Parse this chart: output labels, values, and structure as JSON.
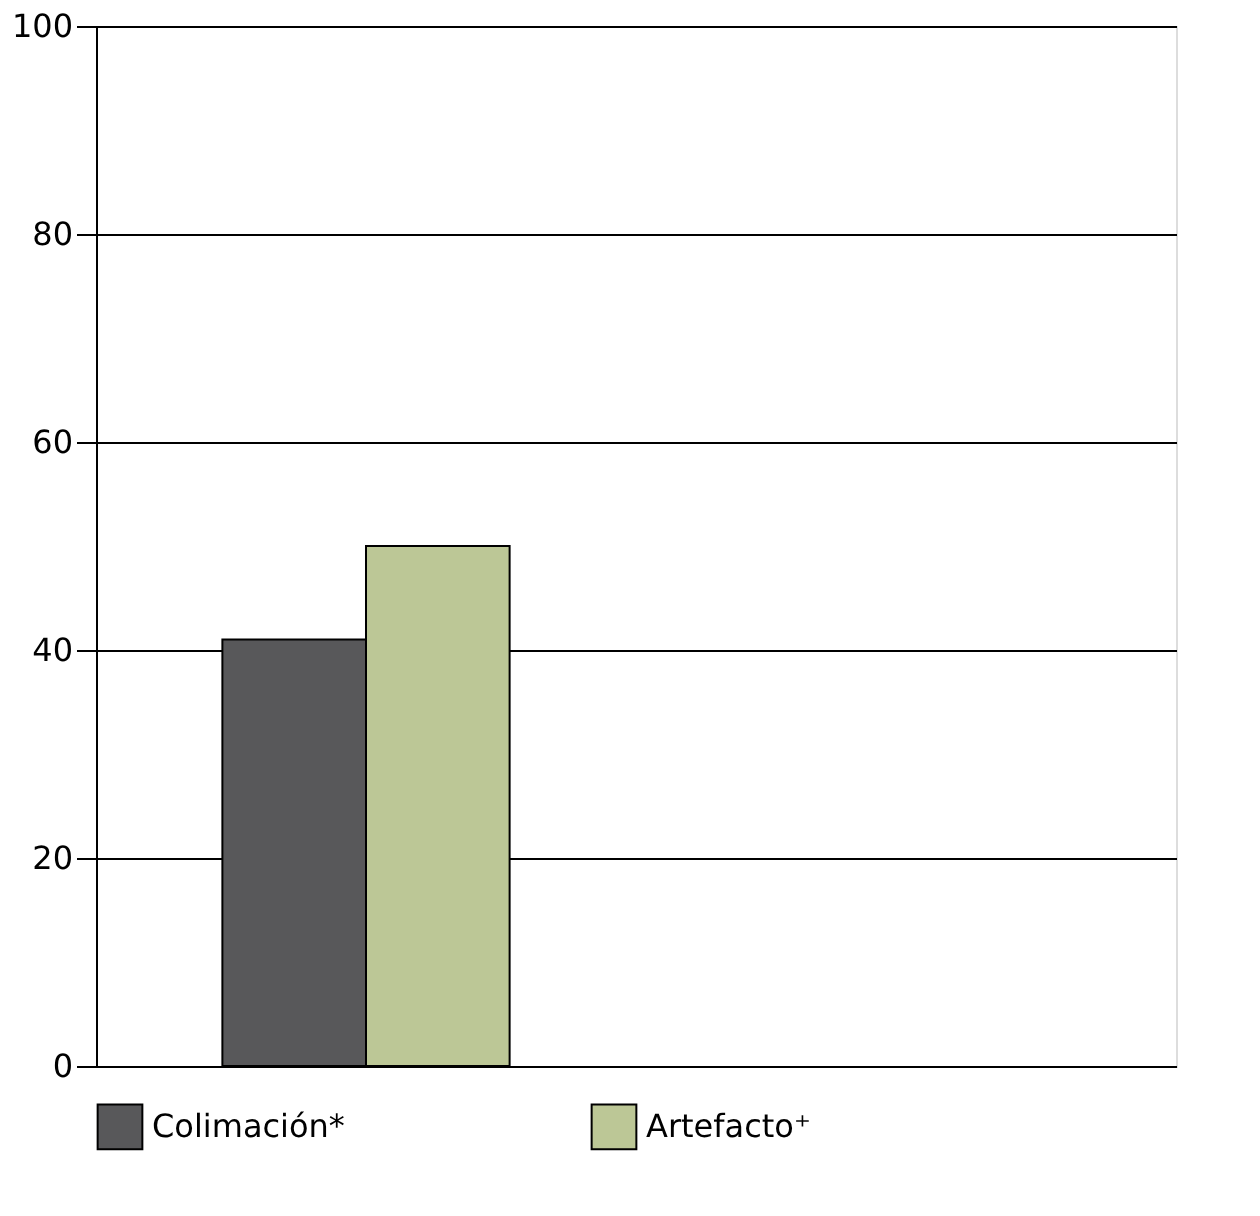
{
  "chart_data": {
    "type": "bar",
    "categories": [
      null,
      null
    ],
    "series": [
      {
        "name": "Colimación*",
        "color": "#58585a",
        "values": [
          41,
          null
        ]
      },
      {
        "name": "Artefacto⁺",
        "color": "#bcc796",
        "values": [
          50,
          null
        ]
      }
    ],
    "ylim": [
      0,
      100
    ],
    "yticks": [
      0,
      20,
      40,
      60,
      80,
      100
    ],
    "grid": "y",
    "legend": "bottom",
    "tick_labels": "y"
  }
}
